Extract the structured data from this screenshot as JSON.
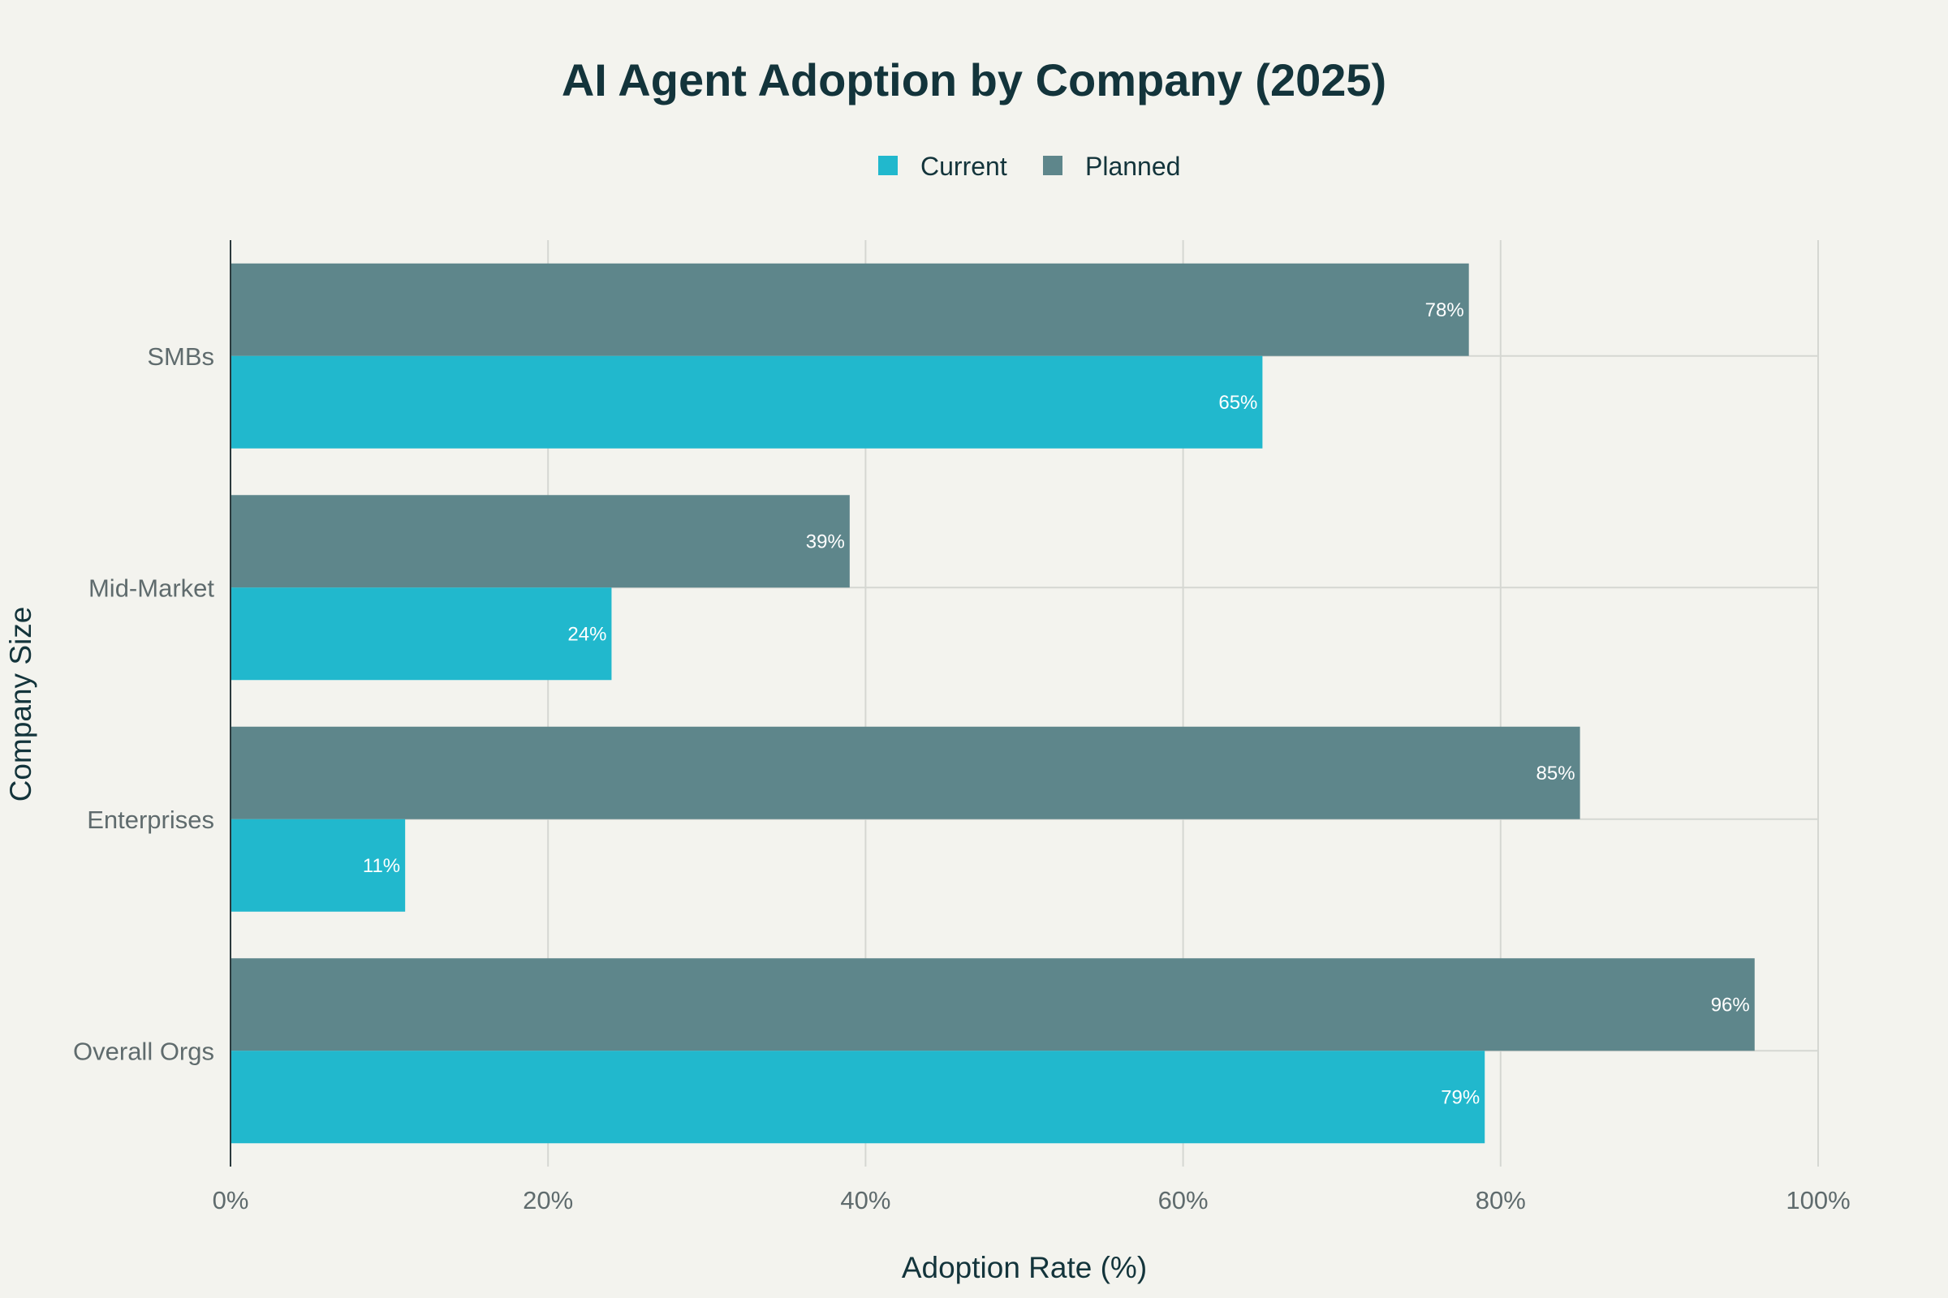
{
  "chart_data": {
    "type": "bar",
    "orientation": "horizontal",
    "title": "AI Agent Adoption by Company (2025)",
    "xlabel": "Adoption Rate (%)",
    "ylabel": "Company Size",
    "categories": [
      "SMBs",
      "Mid-Market",
      "Enterprises",
      "Overall Orgs"
    ],
    "series": [
      {
        "name": "Current",
        "color": "#21b8cd",
        "values": [
          65,
          24,
          11,
          79
        ]
      },
      {
        "name": "Planned",
        "color": "#5e868b",
        "values": [
          78,
          39,
          85,
          96
        ]
      }
    ],
    "xlim": [
      0,
      100
    ],
    "xticks": [
      0,
      20,
      40,
      60,
      80,
      100
    ],
    "xtick_labels": [
      "0%",
      "20%",
      "40%",
      "60%",
      "80%",
      "100%"
    ],
    "value_suffix": "%",
    "grid": true,
    "legend_position": "top-center"
  }
}
